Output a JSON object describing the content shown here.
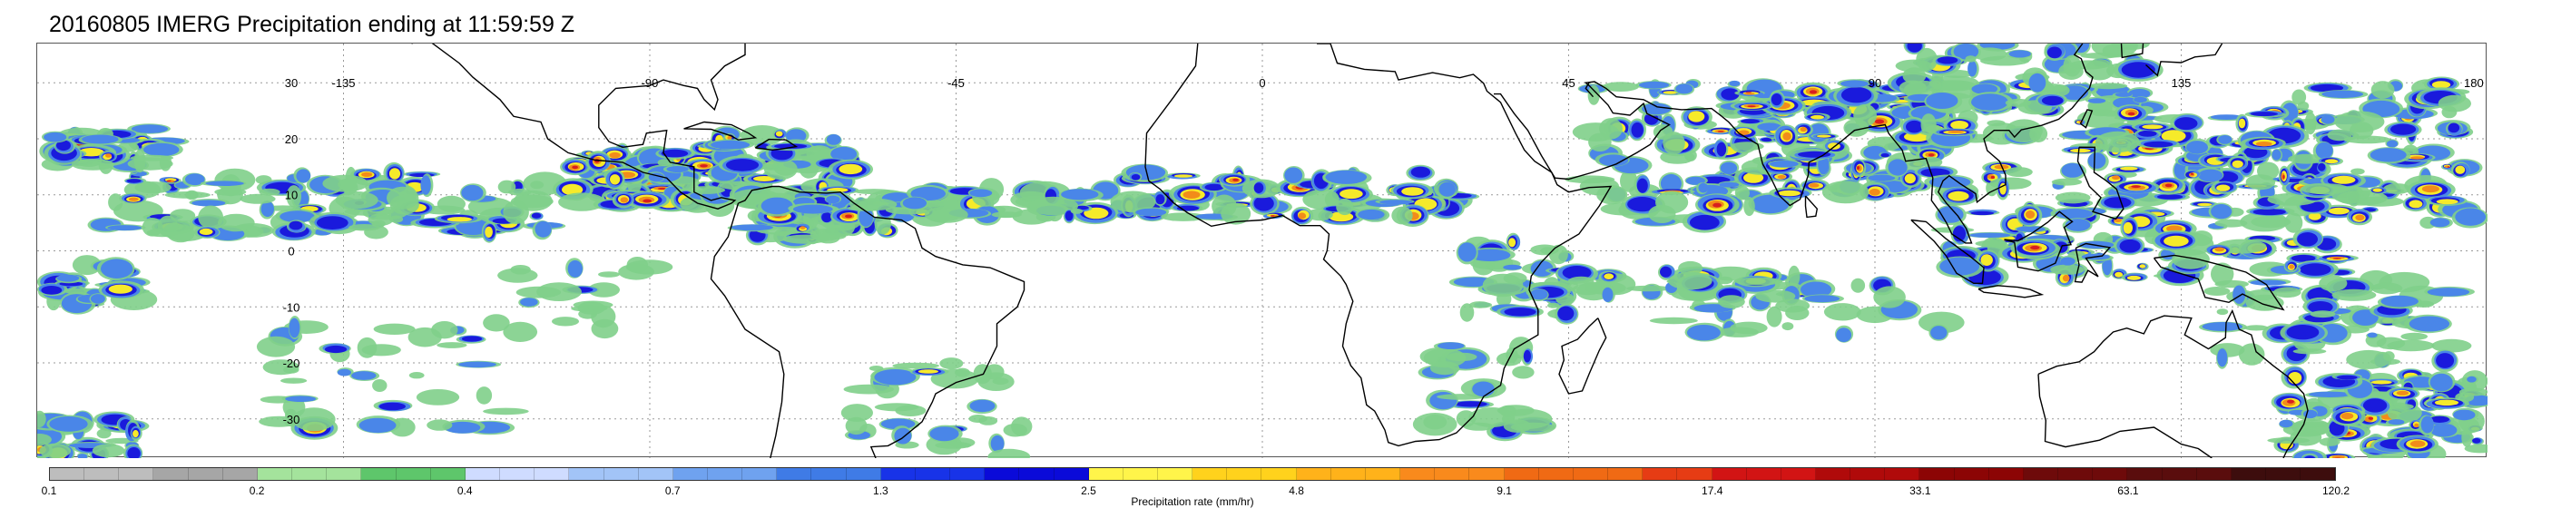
{
  "title": "20160805 IMERG Precipitation ending at 11:59:59 Z",
  "map": {
    "projection": "equirectangular",
    "lon_range": [
      -180,
      180
    ],
    "lat_range": [
      -37,
      37
    ],
    "graticule": "dotted",
    "lon_labels": [
      "-135",
      "-90",
      "-45",
      "0",
      "45",
      "90",
      "135",
      "180"
    ],
    "lon_values": [
      -135,
      -90,
      -45,
      0,
      45,
      90,
      135,
      180
    ],
    "lat_labels": [
      "30",
      "20",
      "10",
      "0",
      "-10",
      "-20",
      "-30"
    ],
    "lat_values": [
      30,
      20,
      10,
      0,
      -10,
      -20,
      -30
    ],
    "coastline_color": "#000000",
    "rain_colors": {
      "light": "#7fcf8a",
      "moderate": "#4a86e8",
      "heavy": "#1a1adc",
      "very_heavy": "#f6ea2a",
      "intense": "#f28c1a",
      "extreme": "#d81f1f"
    }
  },
  "colorbar": {
    "label": "Precipitation rate (mm/hr)",
    "tick_labels": [
      "0.1",
      "0.2",
      "0.4",
      "0.7",
      "1.3",
      "2.5",
      "4.8",
      "9.1",
      "17.4",
      "33.1",
      "63.1",
      "120.2"
    ],
    "tick_values": [
      0.1,
      0.2,
      0.4,
      0.7,
      1.3,
      2.5,
      4.8,
      9.1,
      17.4,
      33.1,
      63.1,
      120.2
    ],
    "segments_per_interval": 6,
    "colors": [
      "#bdbdbd",
      "#a6a6a6",
      "#a4e39c",
      "#5ec66b",
      "#cfdcff",
      "#a2c4f7",
      "#6fa2ef",
      "#3f7be6",
      "#1833e8",
      "#0a0ad9",
      "#fff44a",
      "#ffd21c",
      "#ffb21a",
      "#f98a1c",
      "#f06a14",
      "#e63c14",
      "#d21414",
      "#b00a0a",
      "#8c0505",
      "#6e0a0a",
      "#5a0d0d",
      "#3d0d0d"
    ]
  }
}
